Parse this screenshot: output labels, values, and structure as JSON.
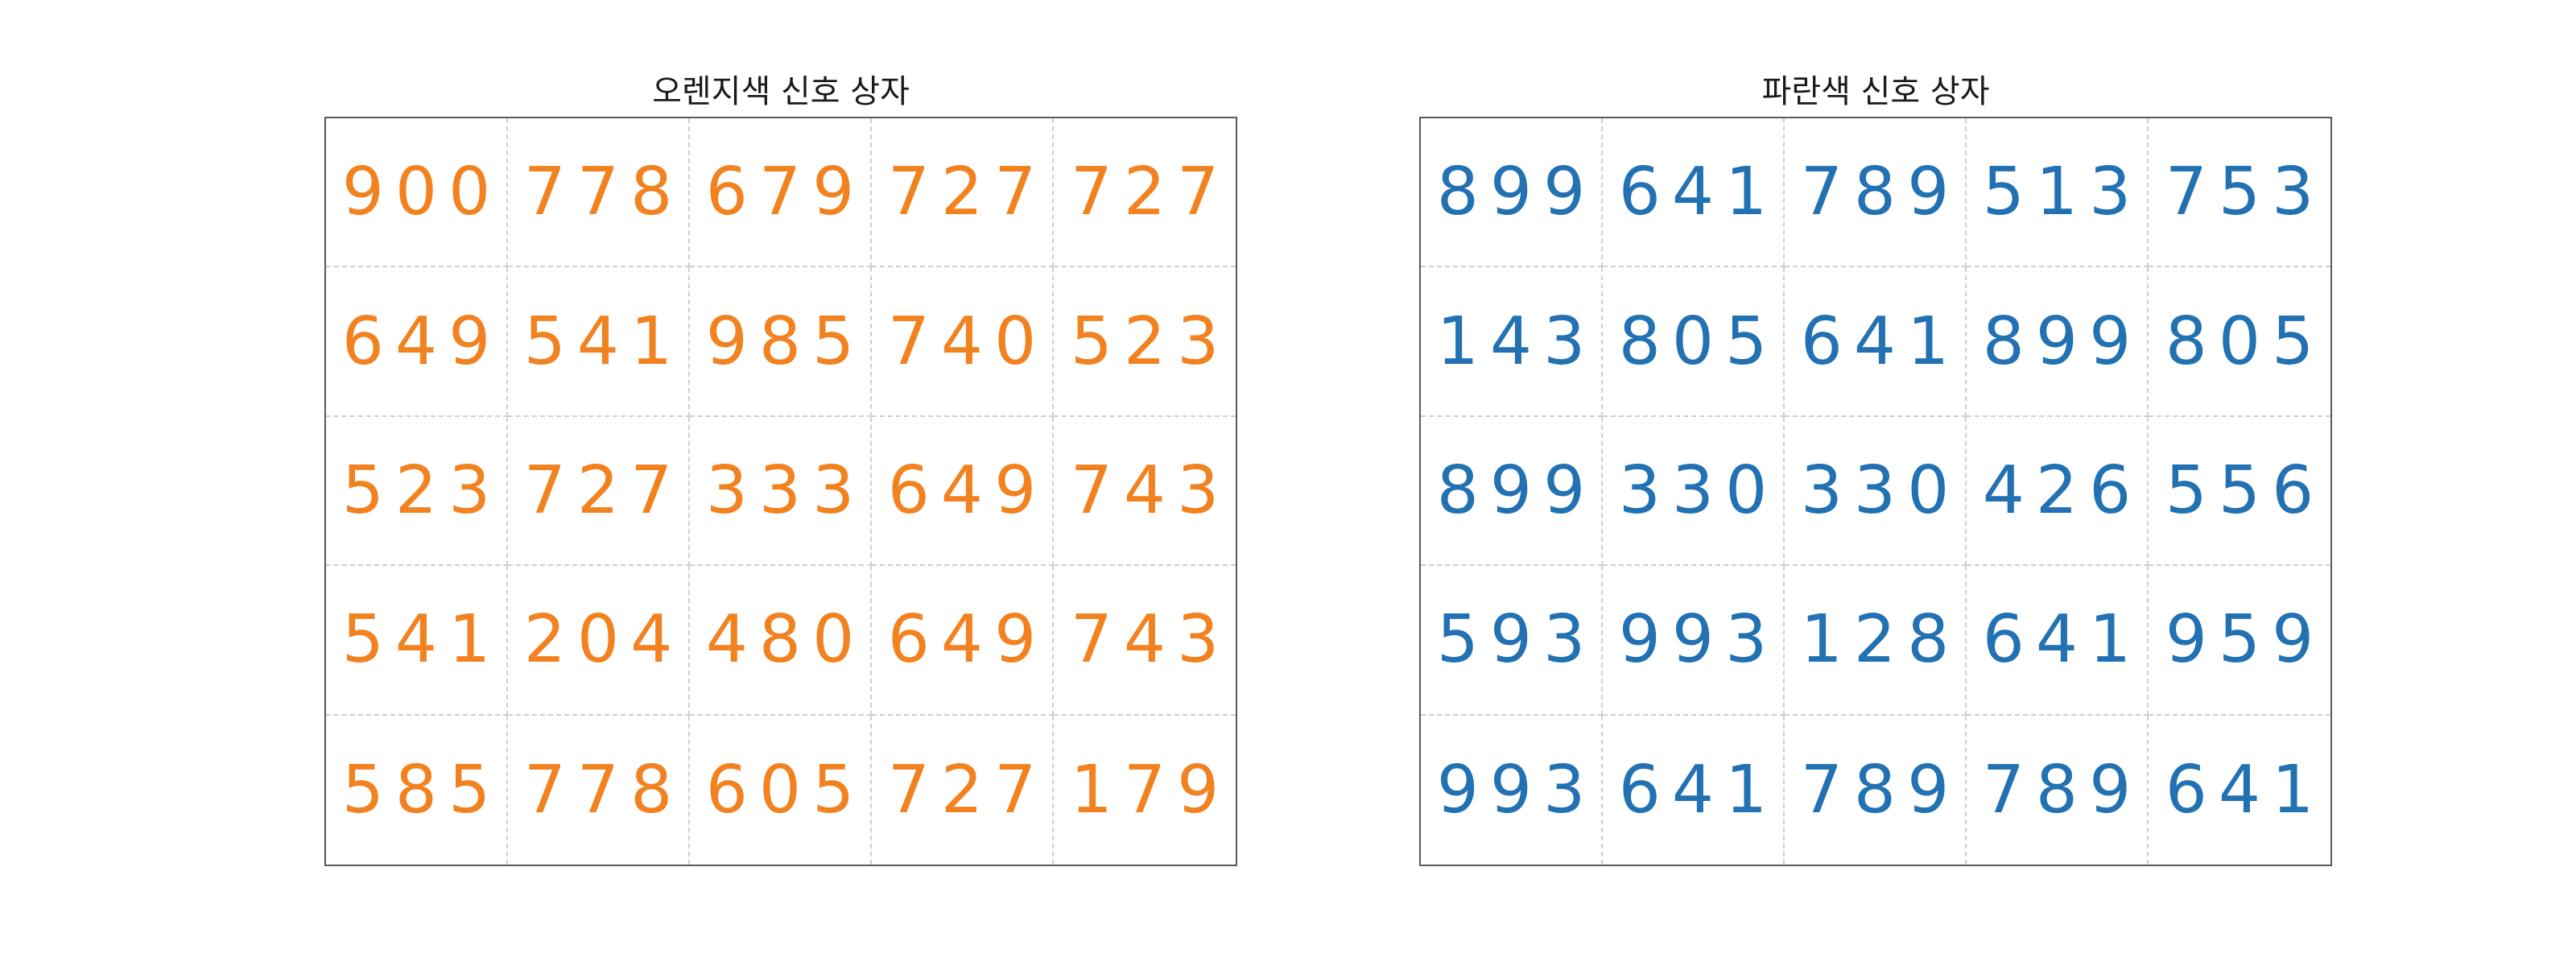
{
  "panels": [
    {
      "title": "오렌지색 신호 상자",
      "color": "#f28220",
      "grid": [
        [
          "900",
          "778",
          "679",
          "727",
          "727"
        ],
        [
          "649",
          "541",
          "985",
          "740",
          "523"
        ],
        [
          "523",
          "727",
          "333",
          "649",
          "743"
        ],
        [
          "541",
          "204",
          "480",
          "649",
          "743"
        ],
        [
          "585",
          "778",
          "605",
          "727",
          "179"
        ]
      ]
    },
    {
      "title": "파란색 신호 상자",
      "color": "#2271b3",
      "grid": [
        [
          "899",
          "641",
          "789",
          "513",
          "753"
        ],
        [
          "143",
          "805",
          "641",
          "899",
          "805"
        ],
        [
          "899",
          "330",
          "330",
          "426",
          "556"
        ],
        [
          "593",
          "993",
          "128",
          "641",
          "959"
        ],
        [
          "993",
          "641",
          "789",
          "789",
          "641"
        ]
      ]
    }
  ]
}
